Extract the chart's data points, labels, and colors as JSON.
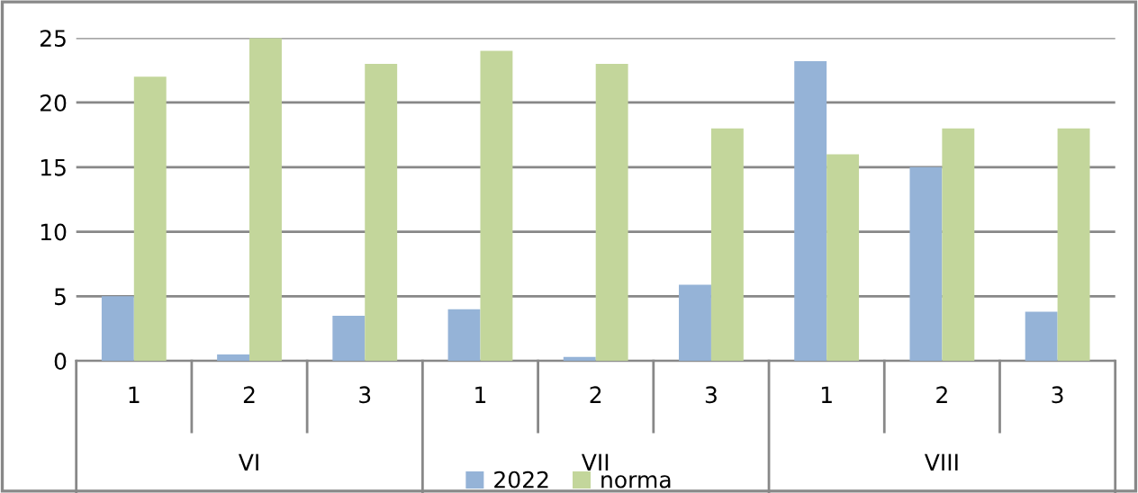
{
  "chart_data": {
    "type": "bar",
    "categories": [
      "1",
      "2",
      "3",
      "1",
      "2",
      "3",
      "1",
      "2",
      "3"
    ],
    "series": [
      {
        "name": "2022",
        "color": "#95b3d7",
        "values": [
          5,
          0.5,
          3.5,
          4,
          0.3,
          5.9,
          23.2,
          15,
          3.8
        ]
      },
      {
        "name": "norma",
        "color": "#c3d69b",
        "values": [
          22,
          25,
          23,
          24,
          23,
          18,
          16,
          18,
          18
        ]
      }
    ],
    "annotations": [
      "VI",
      "VII",
      "VIII"
    ],
    "ylim": [
      0,
      25
    ],
    "yticks": [
      0,
      5,
      10,
      15,
      20,
      25
    ],
    "grid": "y",
    "legend": "bottom"
  }
}
